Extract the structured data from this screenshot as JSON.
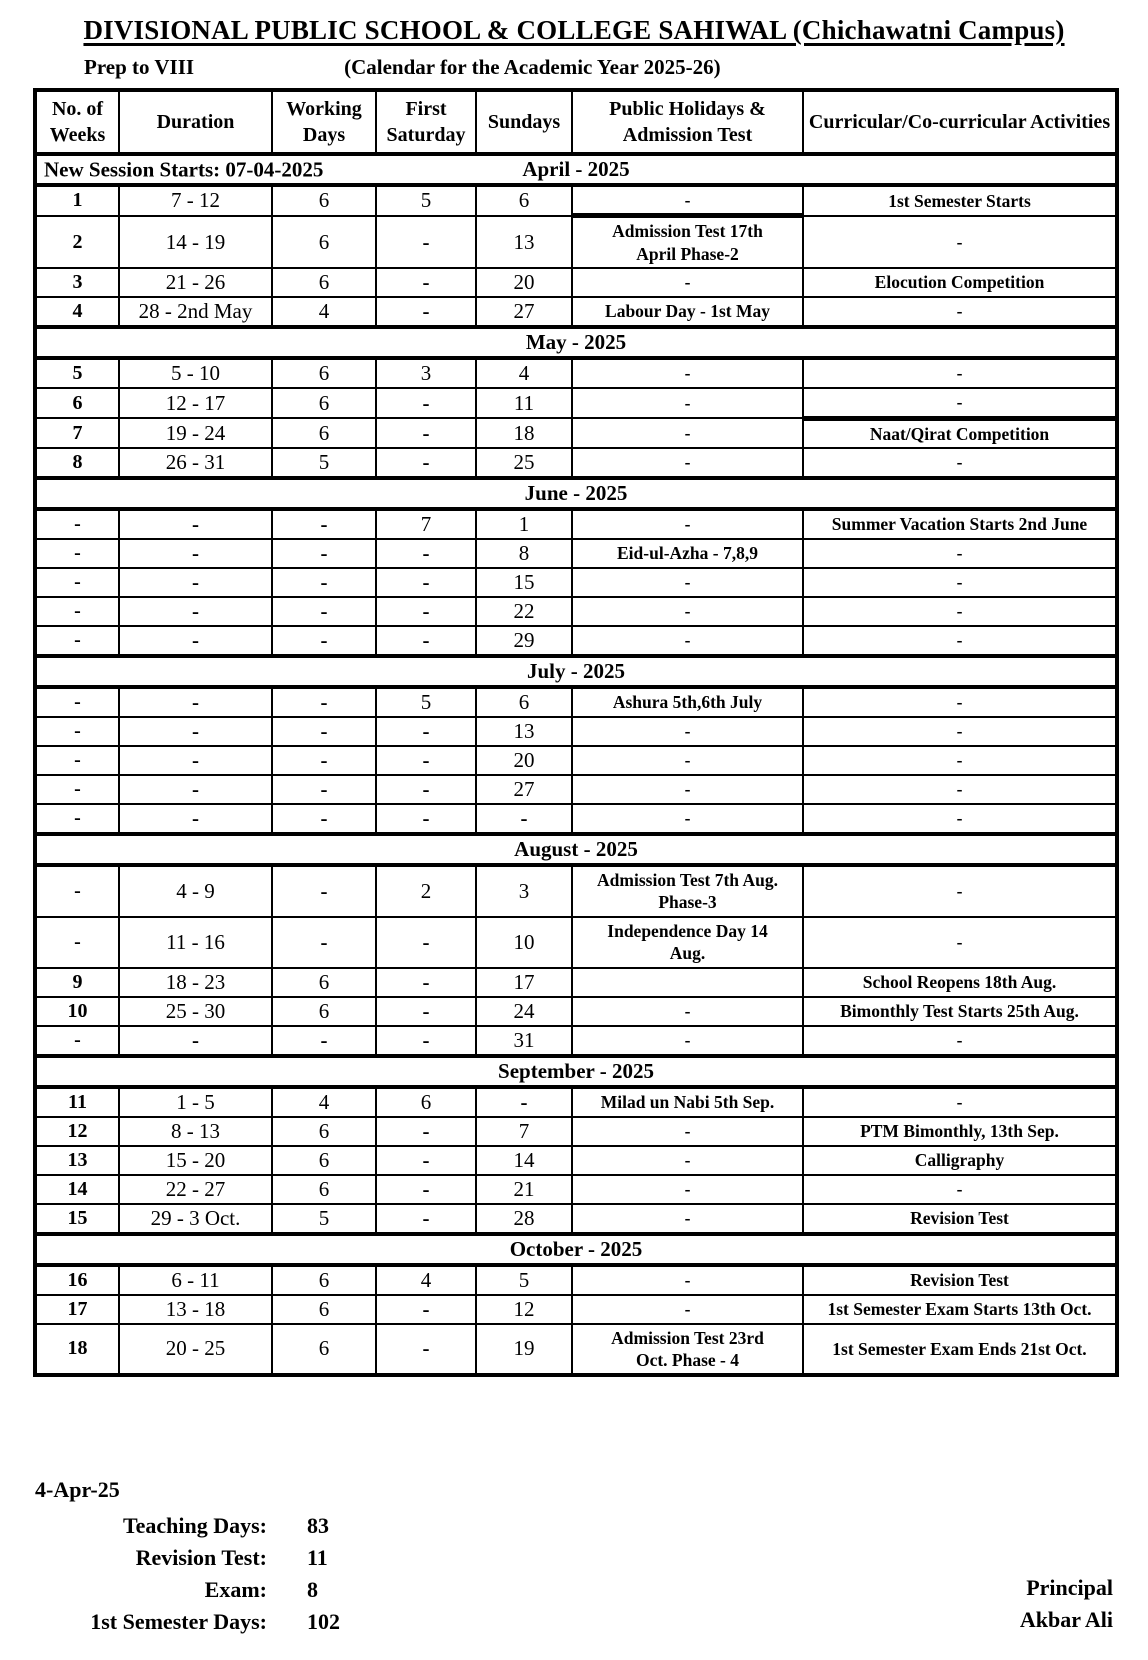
{
  "page": {
    "title": "DIVISIONAL PUBLIC SCHOOL & COLLEGE SAHIWAL (Chichawatni Campus)",
    "grade_range": "Prep to VIII",
    "calendar_label": "(Calendar for the Academic Year 2025-26)"
  },
  "table": {
    "columns": [
      "No. of Weeks",
      "Duration",
      "Working Days",
      "First Saturday",
      "Sundays",
      "Public Holidays & Admission Test",
      "Curricular/Co-curricular Activities"
    ],
    "months": [
      {
        "name": "April - 2025",
        "note": "New Session Starts: 07-04-2025",
        "rows": [
          [
            "1",
            "7 - 12",
            "6",
            "5",
            "6",
            "-",
            "1st Semester Starts"
          ],
          [
            "2",
            "14 - 19",
            "6",
            "-",
            "13",
            "Admission Test 17th\nApril  Phase-2",
            "-"
          ],
          [
            "3",
            "21 - 26",
            "6",
            "-",
            "20",
            "-",
            "Elocution Competition"
          ],
          [
            "4",
            "28 - 2nd May",
            "4",
            "-",
            "27",
            "Labour Day - 1st May",
            "-"
          ]
        ]
      },
      {
        "name": "May - 2025",
        "rows": [
          [
            "5",
            "5 - 10",
            "6",
            "3",
            "4",
            "-",
            "-"
          ],
          [
            "6",
            "12 - 17",
            "6",
            "-",
            "11",
            "-",
            "-"
          ],
          [
            "7",
            "19 - 24",
            "6",
            "-",
            "18",
            "-",
            "Naat/Qirat Competition"
          ],
          [
            "8",
            "26 - 31",
            "5",
            "-",
            "25",
            "-",
            "-"
          ]
        ]
      },
      {
        "name": "June - 2025",
        "rows": [
          [
            "-",
            "-",
            "-",
            "7",
            "1",
            "-",
            "Summer Vacation Starts 2nd June"
          ],
          [
            "-",
            "-",
            "-",
            "-",
            "8",
            "Eid-ul-Azha - 7,8,9",
            "-"
          ],
          [
            "-",
            "-",
            "-",
            "-",
            "15",
            "-",
            "-"
          ],
          [
            "-",
            "-",
            "-",
            "-",
            "22",
            "-",
            "-"
          ],
          [
            "-",
            "-",
            "-",
            "-",
            "29",
            "-",
            "-"
          ]
        ]
      },
      {
        "name": "July - 2025",
        "rows": [
          [
            "-",
            "-",
            "-",
            "5",
            "6",
            "Ashura  5th,6th July",
            "-"
          ],
          [
            "-",
            "-",
            "-",
            "-",
            "13",
            "-",
            "-"
          ],
          [
            "-",
            "-",
            "-",
            "-",
            "20",
            "-",
            "-"
          ],
          [
            "-",
            "-",
            "-",
            "-",
            "27",
            "-",
            "-"
          ],
          [
            "-",
            "-",
            "-",
            "-",
            "-",
            "-",
            "-"
          ]
        ]
      },
      {
        "name": "August - 2025",
        "rows": [
          [
            "-",
            "4 - 9",
            "-",
            "2",
            "3",
            "Admission Test 7th Aug.\nPhase-3",
            "-"
          ],
          [
            "-",
            "11 - 16",
            "-",
            "-",
            "10",
            "Independence Day 14\nAug.",
            "-"
          ],
          [
            "9",
            "18 - 23",
            "6",
            "-",
            "17",
            "",
            "School Reopens 18th Aug."
          ],
          [
            "10",
            "25 - 30",
            "6",
            "-",
            "24",
            "-",
            "Bimonthly Test Starts 25th Aug."
          ],
          [
            "-",
            "-",
            "-",
            "-",
            "31",
            "-",
            "-"
          ]
        ]
      },
      {
        "name": "September - 2025",
        "rows": [
          [
            "11",
            "1 - 5",
            "4",
            "6",
            "-",
            "Milad un Nabi 5th Sep.",
            "-"
          ],
          [
            "12",
            "8 - 13",
            "6",
            "-",
            "7",
            "-",
            "PTM  Bimonthly, 13th Sep."
          ],
          [
            "13",
            "15 - 20",
            "6",
            "-",
            "14",
            "-",
            "Calligraphy"
          ],
          [
            "14",
            "22 - 27",
            "6",
            "-",
            "21",
            "-",
            "-"
          ],
          [
            "15",
            "29 - 3 Oct.",
            "5",
            "-",
            "28",
            "-",
            "Revision Test"
          ]
        ]
      },
      {
        "name": "October - 2025",
        "rows": [
          [
            "16",
            "6 - 11",
            "6",
            "4",
            "5",
            "-",
            "Revision Test"
          ],
          [
            "17",
            "13 - 18",
            "6",
            "-",
            "12",
            "-",
            "1st Semester Exam Starts 13th Oct."
          ],
          [
            "18",
            "20 - 25",
            "6",
            "-",
            "19",
            "Admission Test  23rd\nOct.   Phase - 4",
            "1st Semester Exam Ends 21st Oct."
          ]
        ]
      }
    ]
  },
  "footer": {
    "date": "4-Apr-25",
    "stats": [
      {
        "label": "Teaching Days:",
        "value": "83"
      },
      {
        "label": "Revision Test:",
        "value": "11"
      },
      {
        "label": "Exam:",
        "value": "8"
      },
      {
        "label": "1st Semester Days:",
        "value": "102"
      }
    ],
    "signature_title": "Principal",
    "signature_name": "Akbar Ali"
  }
}
